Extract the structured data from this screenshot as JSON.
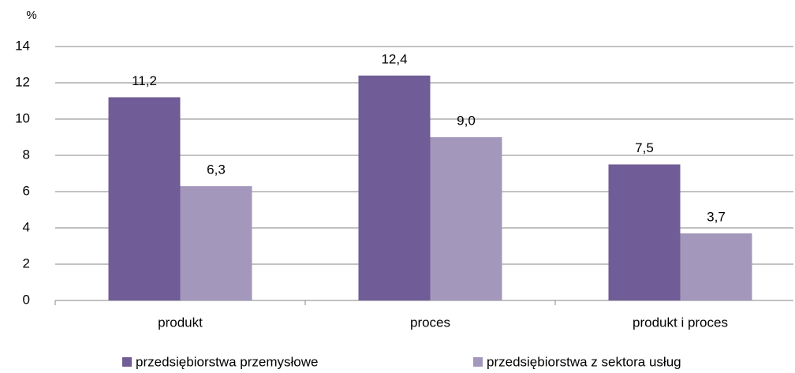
{
  "chart_data": {
    "type": "bar",
    "y_axis_label": "%",
    "categories": [
      "produkt",
      "proces",
      "produkt i proces"
    ],
    "series": [
      {
        "name": "przedsiębiorstwa przemysłowe",
        "color": "#705c96",
        "values": [
          11.2,
          12.4,
          7.5
        ],
        "value_labels": [
          "11,2",
          "12,4",
          "7,5"
        ]
      },
      {
        "name": "przedsiębiorstwa z sektora usług",
        "color": "#a397bc",
        "values": [
          6.3,
          9.0,
          3.7
        ],
        "value_labels": [
          "6,3",
          "9,0",
          "3,7"
        ]
      }
    ],
    "ylim": [
      0,
      14
    ],
    "yticks": [
      0,
      2,
      4,
      6,
      8,
      10,
      12,
      14
    ],
    "grid": true,
    "legend": "bottom"
  }
}
